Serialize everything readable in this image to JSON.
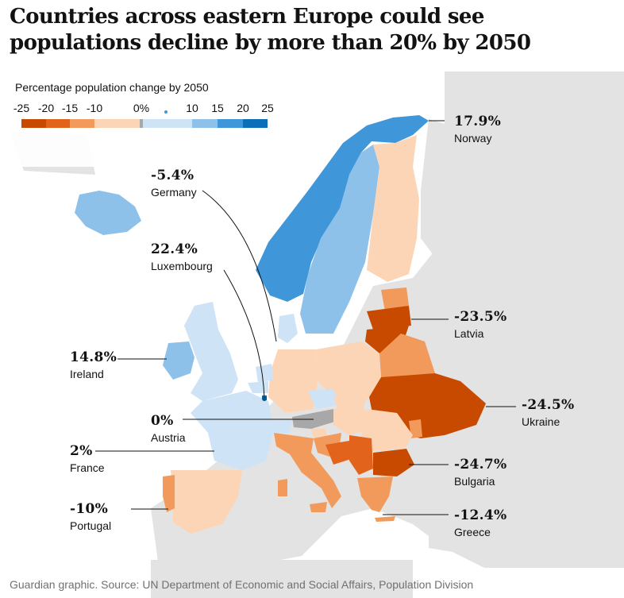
{
  "headline": "Countries across eastern Europe could see populations decline by more than 20% by 2050",
  "legend": {
    "title": "Percentage population change by 2050",
    "ticks": [
      "-25",
      "-20",
      "-15",
      "-10",
      "0%",
      "10",
      "15",
      "20",
      "25"
    ],
    "colors": [
      "#c84a00",
      "#e2641c",
      "#f29a5c",
      "#fbd5b6",
      "#a8a8a8",
      "#cfe3f6",
      "#8dc1ea",
      "#3f97da",
      "#0a6fb8"
    ]
  },
  "colors": {
    "no_data": "#e3e3e3",
    "sea": "#ffffff",
    "dot": "#005689",
    "leader": "#121212"
  },
  "labels": {
    "norway": {
      "value": "17.9%",
      "name": "Norway"
    },
    "germany": {
      "value": "-5.4%",
      "name": "Germany"
    },
    "luxembourg": {
      "value": "22.4%",
      "name": "Luxembourg"
    },
    "latvia": {
      "value": "-23.5%",
      "name": "Latvia"
    },
    "ireland": {
      "value": "14.8%",
      "name": "Ireland"
    },
    "ukraine": {
      "value": "-24.5%",
      "name": "Ukraine"
    },
    "austria": {
      "value": "0%",
      "name": "Austria"
    },
    "france": {
      "value": "2%",
      "name": "France"
    },
    "bulgaria": {
      "value": "-24.7%",
      "name": "Bulgaria"
    },
    "portugal": {
      "value": "-10%",
      "name": "Portugal"
    },
    "greece": {
      "value": "-12.4%",
      "name": "Greece"
    }
  },
  "source": "Guardian graphic. Source: UN Department of Economic and Social Affairs, Population Division"
}
